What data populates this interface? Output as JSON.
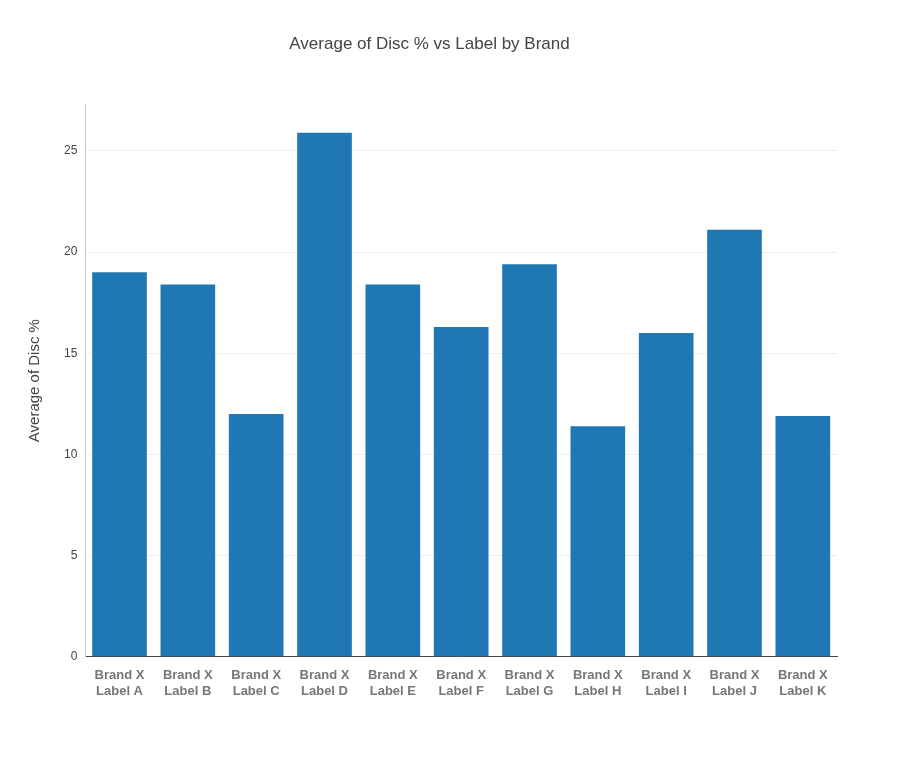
{
  "chart_data": {
    "type": "bar",
    "title": "Average of Disc % vs Label by Brand",
    "y_label": "Average of Disc %",
    "categories": [
      "Brand X\nLabel A",
      "Brand X\nLabel B",
      "Brand X\nLabel C",
      "Brand X\nLabel D",
      "Brand X\nLabel E",
      "Brand X\nLabel F",
      "Brand X\nLabel G",
      "Brand X\nLabel H",
      "Brand X\nLabel I",
      "Brand X\nLabel J",
      "Brand X\nLabel K"
    ],
    "values": [
      19.0,
      18.4,
      12.0,
      25.9,
      18.4,
      16.3,
      19.4,
      11.4,
      16.0,
      21.1,
      11.9
    ],
    "color": "#1f77b4",
    "ylim": [
      0,
      27.3
    ],
    "yticks": [
      0,
      5,
      10,
      15,
      20,
      25
    ],
    "grid": true
  }
}
